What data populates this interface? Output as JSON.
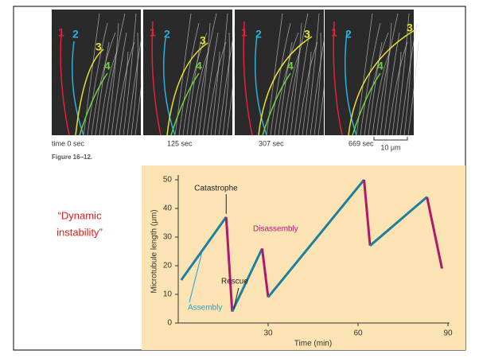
{
  "slide": {
    "frame_captions": [
      "time 0 sec",
      "125 sec",
      "307 sec",
      "669 sec"
    ],
    "scale_bar": "10 μm",
    "figure_label": "Figure 16–12.",
    "track_labels": [
      "1",
      "2",
      "3",
      "4"
    ],
    "side_note": [
      "“Dynamic",
      "instability”"
    ]
  },
  "chart_data": {
    "type": "line",
    "x_label": "Time (min)",
    "y_label": "Microtubule length (μm)",
    "xlim": [
      0,
      90
    ],
    "xticks": [
      30,
      60,
      90
    ],
    "ylim": [
      0,
      50
    ],
    "yticks": [
      0,
      10,
      20,
      30,
      40,
      50
    ],
    "series": [
      {
        "x": [
          1,
          16,
          18,
          28,
          30,
          62,
          64,
          83,
          88
        ],
        "values": [
          15,
          37,
          4,
          26,
          9,
          50,
          27,
          44,
          19
        ]
      }
    ],
    "annotations": [
      "Catastrophe",
      "Disassembly",
      "Rescue",
      "Assembly"
    ]
  }
}
